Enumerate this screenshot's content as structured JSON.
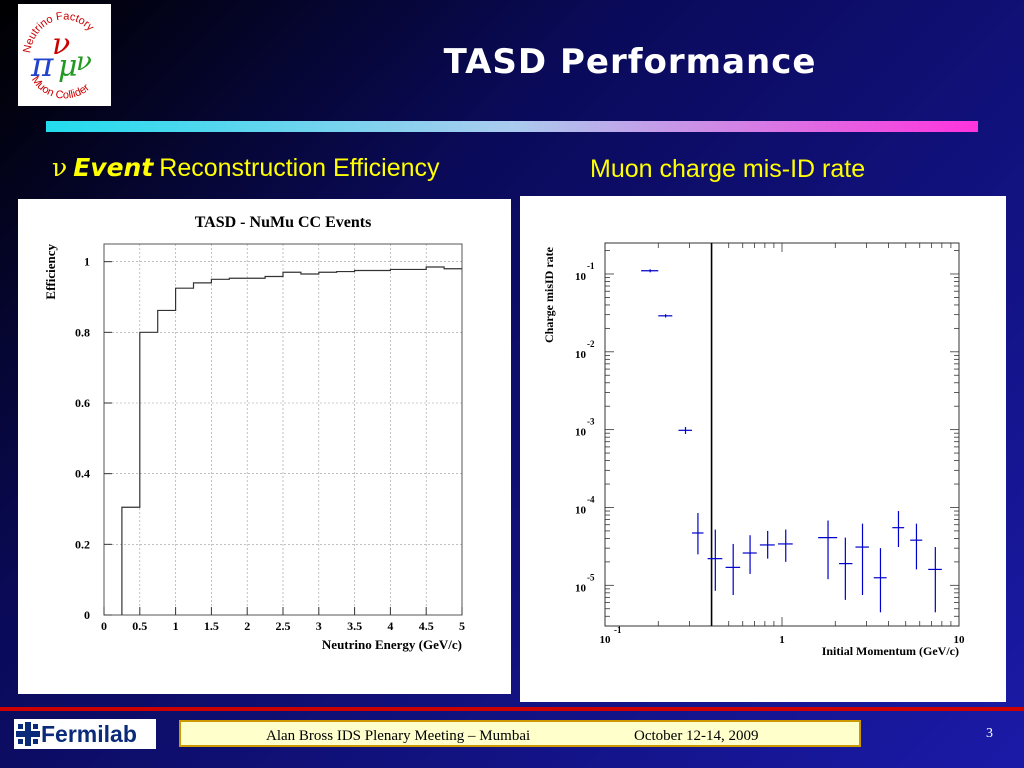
{
  "slide": {
    "title": "TASD Performance",
    "subtitle_left_symbol": "ν",
    "subtitle_left_bold": "Event",
    "subtitle_left_rest": "Reconstruction Efficiency",
    "subtitle_right": "Muon charge mis-ID rate",
    "page_number": "3"
  },
  "logo": {
    "ring_top": "Neutrino Factory",
    "ring_bottom": "Muon Collider"
  },
  "footer": {
    "fermilab_label": "Fermilab",
    "meeting": "Alan Bross   IDS Plenary Meeting – Mumbai",
    "dates": "October 12-14, 2009"
  },
  "colors": {
    "subtitle": "#ffff00",
    "accent_bar_start": "#22ddee",
    "accent_bar_end": "#ff33dd",
    "footer_rule": "#cc0000",
    "misid_points": "#0000cc"
  },
  "chart_data": [
    {
      "type": "line",
      "title": "TASD - NuMu CC Events",
      "xlabel": "Neutrino Energy (GeV/c)",
      "ylabel": "Efficiency",
      "xlim": [
        0,
        5
      ],
      "ylim": [
        0,
        1.05
      ],
      "x_ticks": [
        "0",
        "0.5",
        "1",
        "1.5",
        "2",
        "2.5",
        "3",
        "3.5",
        "4",
        "4.5",
        "5"
      ],
      "y_ticks": [
        "0",
        "0.2",
        "0.4",
        "0.6",
        "0.8",
        "1"
      ],
      "grid": true,
      "bin_edges": [
        0.25,
        0.5,
        0.75,
        1.0,
        1.25,
        1.5,
        1.75,
        2.0,
        2.25,
        2.5,
        2.75,
        3.0,
        3.25,
        3.5,
        3.75,
        4.0,
        4.25,
        4.5,
        4.75,
        5.0
      ],
      "values": [
        0.305,
        0.8,
        0.862,
        0.925,
        0.94,
        0.95,
        0.953,
        0.953,
        0.958,
        0.97,
        0.965,
        0.97,
        0.972,
        0.975,
        0.975,
        0.978,
        0.978,
        0.985,
        0.98
      ]
    },
    {
      "type": "scatter",
      "xlabel": "Initial Momentum (GeV/c)",
      "ylabel": "Charge misID rate",
      "x_scale": "log",
      "y_scale": "log",
      "xlim": [
        0.1,
        10
      ],
      "ylim": [
        3e-06,
        0.25
      ],
      "x_ticks": [
        {
          "base": "10",
          "exp": "-1"
        },
        {
          "base": "1",
          "exp": ""
        },
        {
          "base": "10",
          "exp": ""
        }
      ],
      "y_ticks": [
        {
          "base": "10",
          "exp": "-1"
        },
        {
          "base": "10",
          "exp": "-2"
        },
        {
          "base": "10",
          "exp": "-3"
        },
        {
          "base": "10",
          "exp": "-4"
        },
        {
          "base": "10",
          "exp": "-5"
        }
      ],
      "vertical_line_x": 0.4,
      "points": [
        {
          "x": 0.18,
          "y": 0.11,
          "xerr": [
            0.16,
            0.2
          ],
          "yerr": [
            0.105,
            0.115
          ]
        },
        {
          "x": 0.22,
          "y": 0.029,
          "xerr": [
            0.2,
            0.24
          ],
          "yerr": [
            0.0276,
            0.0304
          ]
        },
        {
          "x": 0.285,
          "y": 0.00098,
          "xerr": [
            0.26,
            0.31
          ],
          "yerr": [
            0.00088,
            0.00108
          ]
        },
        {
          "x": 0.335,
          "y": 4.7e-05,
          "xerr": [
            0.31,
            0.36
          ],
          "yerr": [
            2.5e-05,
            8.5e-05
          ]
        },
        {
          "x": 0.42,
          "y": 2.2e-05,
          "xerr": [
            0.38,
            0.46
          ],
          "yerr": [
            8.5e-06,
            5.2e-05
          ]
        },
        {
          "x": 0.53,
          "y": 1.7e-05,
          "xerr": [
            0.48,
            0.58
          ],
          "yerr": [
            7.5e-06,
            3.4e-05
          ]
        },
        {
          "x": 0.66,
          "y": 2.6e-05,
          "xerr": [
            0.6,
            0.72
          ],
          "yerr": [
            1.4e-05,
            4.4e-05
          ]
        },
        {
          "x": 0.83,
          "y": 3.3e-05,
          "xerr": [
            0.75,
            0.91
          ],
          "yerr": [
            2.2e-05,
            5e-05
          ]
        },
        {
          "x": 1.05,
          "y": 3.4e-05,
          "xerr": [
            0.95,
            1.15
          ],
          "yerr": [
            2e-05,
            5.2e-05
          ]
        },
        {
          "x": 1.82,
          "y": 4.1e-05,
          "xerr": [
            1.6,
            2.05
          ],
          "yerr": [
            1.2e-05,
            6.8e-05
          ]
        },
        {
          "x": 2.28,
          "y": 1.9e-05,
          "xerr": [
            2.1,
            2.5
          ],
          "yerr": [
            6.5e-06,
            4.1e-05
          ]
        },
        {
          "x": 2.85,
          "y": 3.1e-05,
          "xerr": [
            2.6,
            3.1
          ],
          "yerr": [
            7.5e-06,
            6.2e-05
          ]
        },
        {
          "x": 3.6,
          "y": 1.25e-05,
          "xerr": [
            3.3,
            3.9
          ],
          "yerr": [
            4.5e-06,
            3e-05
          ]
        },
        {
          "x": 4.55,
          "y": 5.5e-05,
          "xerr": [
            4.2,
            4.9
          ],
          "yerr": [
            3.1e-05,
            9e-05
          ]
        },
        {
          "x": 5.75,
          "y": 3.8e-05,
          "xerr": [
            5.3,
            6.2
          ],
          "yerr": [
            1.6e-05,
            6.2e-05
          ]
        },
        {
          "x": 7.35,
          "y": 1.6e-05,
          "xerr": [
            6.7,
            8.0
          ],
          "yerr": [
            4.5e-06,
            3.1e-05
          ]
        }
      ]
    }
  ]
}
